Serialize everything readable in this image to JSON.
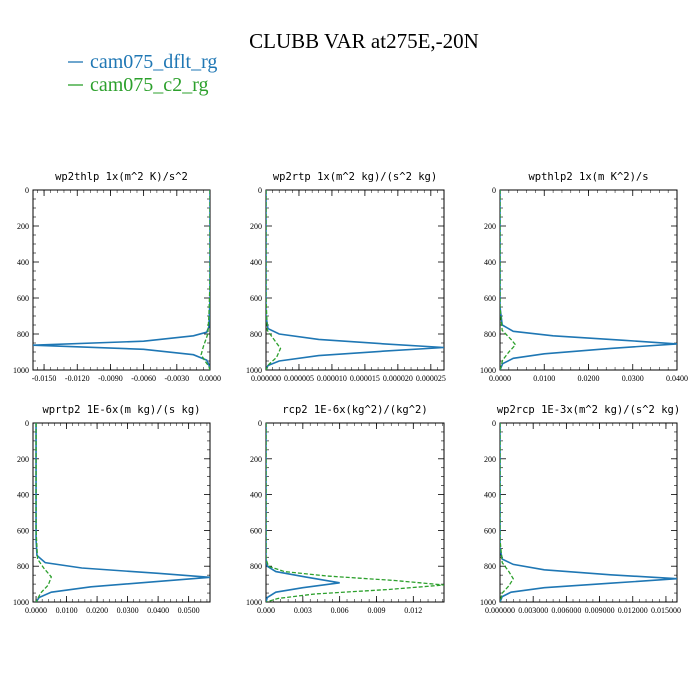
{
  "title": "CLUBB VAR at275E,-20N",
  "legend": [
    {
      "label": "cam075_dflt_rg",
      "color": "#1f77b4"
    },
    {
      "label": "cam075_c2_rg",
      "color": "#2ca02c"
    }
  ],
  "chart_data": [
    {
      "type": "line",
      "title": "wp2thlp   1x(m^2 K)/s^2",
      "xlim": [
        -0.016,
        0.0
      ],
      "ylim": [
        1000,
        0
      ],
      "xticks": [
        "-0.0150",
        "-0.0120",
        "-0.0090",
        "-0.0060",
        "-0.0030",
        "0.0000"
      ],
      "xtick_values": [
        -0.015,
        -0.012,
        -0.009,
        -0.006,
        -0.003,
        0.0
      ],
      "yticks": [
        "0",
        "200",
        "400",
        "600",
        "800",
        "1000"
      ],
      "ytick_values": [
        0,
        200,
        400,
        600,
        800,
        1000
      ],
      "series": [
        {
          "name": "cam075_dflt_rg",
          "style": "solid",
          "points": [
            [
              0,
              0
            ],
            [
              0,
              600
            ],
            [
              -0.0001,
              760
            ],
            [
              -0.0003,
              790
            ],
            [
              -0.0015,
              810
            ],
            [
              -0.006,
              840
            ],
            [
              -0.016,
              862
            ],
            [
              -0.006,
              885
            ],
            [
              -0.0015,
              915
            ],
            [
              -0.0003,
              945
            ],
            [
              -0.0001,
              970
            ],
            [
              0,
              1000
            ]
          ]
        },
        {
          "name": "cam075_c2_rg",
          "style": "dashed",
          "points": [
            [
              0,
              0
            ],
            [
              0,
              500
            ],
            [
              -0.0001,
              700
            ],
            [
              -0.0002,
              800
            ],
            [
              -0.0006,
              870
            ],
            [
              -0.0008,
              915
            ],
            [
              -0.0004,
              955
            ],
            [
              -0.0001,
              980
            ],
            [
              0,
              1000
            ]
          ]
        }
      ]
    },
    {
      "type": "line",
      "title": "wp2rtp   1x(m^2 kg)/(s^2 kg)",
      "xlim": [
        0.0,
        2.7e-05
      ],
      "ylim": [
        1000,
        0
      ],
      "xticks": [
        "0.000000",
        "0.000005",
        "0.000010",
        "0.000015",
        "0.000020",
        "0.000025"
      ],
      "xtick_values": [
        0.0,
        5e-06,
        1e-05,
        1.5e-05,
        2e-05,
        2.5e-05
      ],
      "yticks": [
        "0",
        "200",
        "400",
        "600",
        "800",
        "1000"
      ],
      "ytick_values": [
        0,
        200,
        400,
        600,
        800,
        1000
      ],
      "series": [
        {
          "name": "cam075_dflt_rg",
          "style": "solid",
          "points": [
            [
              0,
              0
            ],
            [
              0,
              700
            ],
            [
              3e-07,
              770
            ],
            [
              2e-06,
              800
            ],
            [
              8e-06,
              830
            ],
            [
              1.8e-05,
              855
            ],
            [
              2.7e-05,
              875
            ],
            [
              1.8e-05,
              895
            ],
            [
              8e-06,
              920
            ],
            [
              2e-06,
              950
            ],
            [
              3e-07,
              975
            ],
            [
              0,
              1000
            ]
          ]
        },
        {
          "name": "cam075_c2_rg",
          "style": "dashed",
          "points": [
            [
              0,
              0
            ],
            [
              0,
              600
            ],
            [
              2e-07,
              780
            ],
            [
              1.2e-06,
              830
            ],
            [
              2.2e-06,
              880
            ],
            [
              1.6e-06,
              930
            ],
            [
              4e-07,
              970
            ],
            [
              0,
              1000
            ]
          ]
        }
      ]
    },
    {
      "type": "line",
      "title": "wpthlp2   1x(m K^2)/s",
      "xlim": [
        0.0,
        0.04
      ],
      "ylim": [
        1000,
        0
      ],
      "xticks": [
        "0.0000",
        "0.0100",
        "0.0200",
        "0.0300",
        "0.0400"
      ],
      "xtick_values": [
        0.0,
        0.01,
        0.02,
        0.03,
        0.04
      ],
      "yticks": [
        "0",
        "200",
        "400",
        "600",
        "800",
        "1000"
      ],
      "ytick_values": [
        0,
        200,
        400,
        600,
        800,
        1000
      ],
      "series": [
        {
          "name": "cam075_dflt_rg",
          "style": "solid",
          "points": [
            [
              0,
              0
            ],
            [
              0,
              650
            ],
            [
              0.0005,
              750
            ],
            [
              0.003,
              785
            ],
            [
              0.012,
              810
            ],
            [
              0.028,
              835
            ],
            [
              0.04,
              855
            ],
            [
              0.025,
              880
            ],
            [
              0.01,
              910
            ],
            [
              0.003,
              935
            ],
            [
              0.0006,
              965
            ],
            [
              0,
              1000
            ]
          ]
        },
        {
          "name": "cam075_c2_rg",
          "style": "dashed",
          "points": [
            [
              0,
              0
            ],
            [
              0,
              650
            ],
            [
              0.0005,
              780
            ],
            [
              0.0025,
              830
            ],
            [
              0.0035,
              860
            ],
            [
              0.002,
              900
            ],
            [
              0.0006,
              945
            ],
            [
              0,
              1000
            ]
          ]
        }
      ]
    },
    {
      "type": "line",
      "title": "wprtp2   1E-6x(m kg)/(s kg)",
      "xlim": [
        -0.001,
        0.057
      ],
      "ylim": [
        1000,
        0
      ],
      "xticks": [
        "0.0000",
        "0.0100",
        "0.0200",
        "0.0300",
        "0.0400",
        "0.0500"
      ],
      "xtick_values": [
        0.0,
        0.01,
        0.02,
        0.03,
        0.04,
        0.05
      ],
      "yticks": [
        "0",
        "200",
        "400",
        "600",
        "800",
        "1000"
      ],
      "ytick_values": [
        0,
        200,
        400,
        600,
        800,
        1000
      ],
      "series": [
        {
          "name": "cam075_dflt_rg",
          "style": "solid",
          "points": [
            [
              0,
              0
            ],
            [
              0,
              650
            ],
            [
              0.0003,
              740
            ],
            [
              0.003,
              780
            ],
            [
              0.015,
              810
            ],
            [
              0.04,
              840
            ],
            [
              0.057,
              862
            ],
            [
              0.04,
              885
            ],
            [
              0.018,
              915
            ],
            [
              0.005,
              945
            ],
            [
              0.001,
              975
            ],
            [
              0,
              1000
            ]
          ]
        },
        {
          "name": "cam075_c2_rg",
          "style": "dashed",
          "points": [
            [
              0,
              0
            ],
            [
              0,
              600
            ],
            [
              0.0005,
              760
            ],
            [
              0.0025,
              810
            ],
            [
              0.005,
              860
            ],
            [
              0.004,
              905
            ],
            [
              0.0015,
              950
            ],
            [
              0,
              1000
            ]
          ]
        }
      ]
    },
    {
      "type": "line",
      "title": "rcp2   1E-6x(kg^2)/(kg^2)",
      "xlim": [
        0.0,
        0.0145
      ],
      "ylim": [
        1000,
        0
      ],
      "xticks": [
        "0.000",
        "0.003",
        "0.006",
        "0.009",
        "0.012"
      ],
      "xtick_values": [
        0.0,
        0.003,
        0.006,
        0.009,
        0.012
      ],
      "yticks": [
        "0",
        "200",
        "400",
        "600",
        "800",
        "1000"
      ],
      "ytick_values": [
        0,
        200,
        400,
        600,
        800,
        1000
      ],
      "series": [
        {
          "name": "cam075_dflt_rg",
          "style": "solid",
          "points": [
            [
              0,
              0
            ],
            [
              0,
              760
            ],
            [
              0.0001,
              800
            ],
            [
              0.0008,
              830
            ],
            [
              0.0032,
              860
            ],
            [
              0.006,
              893
            ],
            [
              0.003,
              920
            ],
            [
              0.0008,
              945
            ],
            [
              0.0001,
              975
            ],
            [
              0,
              1000
            ]
          ]
        },
        {
          "name": "cam075_c2_rg",
          "style": "dashed",
          "points": [
            [
              0,
              0
            ],
            [
              0,
              760
            ],
            [
              0.0002,
              800
            ],
            [
              0.0015,
              830
            ],
            [
              0.005,
              855
            ],
            [
              0.0105,
              880
            ],
            [
              0.0145,
              905
            ],
            [
              0.01,
              930
            ],
            [
              0.004,
              955
            ],
            [
              0.001,
              980
            ],
            [
              0,
              1000
            ]
          ]
        }
      ]
    },
    {
      "type": "line",
      "title": "wp2rcp   1E-3x(m^2 kg)/(s^2 kg)",
      "xlim": [
        0.0,
        0.016
      ],
      "ylim": [
        1000,
        0
      ],
      "xticks": [
        "0.000000",
        "0.003000",
        "0.006000",
        "0.009000",
        "0.012000",
        "0.015000"
      ],
      "xtick_values": [
        0.0,
        0.003,
        0.006,
        0.009,
        0.012,
        0.015
      ],
      "yticks": [
        "0",
        "200",
        "400",
        "600",
        "800",
        "1000"
      ],
      "ytick_values": [
        0,
        200,
        400,
        600,
        800,
        1000
      ],
      "series": [
        {
          "name": "cam075_dflt_rg",
          "style": "solid",
          "points": [
            [
              0,
              0
            ],
            [
              0,
              700
            ],
            [
              0.0002,
              760
            ],
            [
              0.0012,
              790
            ],
            [
              0.004,
              820
            ],
            [
              0.01,
              848
            ],
            [
              0.016,
              870
            ],
            [
              0.01,
              895
            ],
            [
              0.004,
              920
            ],
            [
              0.001,
              945
            ],
            [
              0.0002,
              970
            ],
            [
              0,
              1000
            ]
          ]
        },
        {
          "name": "cam075_c2_rg",
          "style": "dashed",
          "points": [
            [
              0,
              0
            ],
            [
              0,
              650
            ],
            [
              0.0002,
              780
            ],
            [
              0.0008,
              830
            ],
            [
              0.0012,
              870
            ],
            [
              0.0008,
              910
            ],
            [
              0.0002,
              950
            ],
            [
              0,
              1000
            ]
          ]
        }
      ]
    }
  ]
}
